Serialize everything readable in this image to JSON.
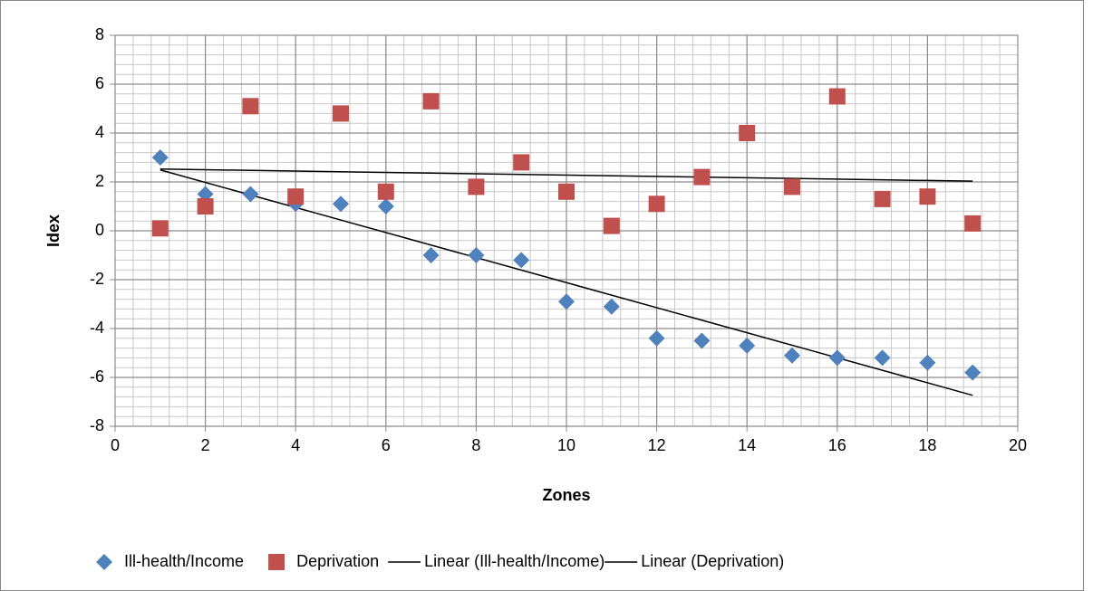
{
  "chart_data": {
    "type": "scatter",
    "x_label": "Zones",
    "y_label": "Idex",
    "x": [
      1,
      2,
      3,
      4,
      5,
      6,
      7,
      8,
      9,
      10,
      11,
      12,
      13,
      14,
      15,
      16,
      17,
      18,
      19
    ],
    "series": [
      {
        "name": "Ill-health/Income",
        "color": "#4f81bd",
        "marker": "diamond",
        "values": [
          3,
          1.5,
          1.5,
          1.1,
          1.1,
          1.0,
          -1.0,
          -1.0,
          -1.2,
          -2.9,
          -3.1,
          -4.4,
          -4.5,
          -4.7,
          -5.1,
          -5.2,
          -5.2,
          -5.4,
          -5.8
        ],
        "trendline": {
          "name": "Linear (Ill-health/Income)",
          "color": "#000000"
        }
      },
      {
        "name": "Deprivation",
        "color": "#c0504d",
        "marker": "square",
        "values": [
          0.1,
          1.0,
          5.1,
          1.4,
          4.8,
          1.6,
          5.3,
          1.8,
          2.8,
          1.6,
          0.2,
          1.1,
          2.2,
          4.0,
          1.8,
          5.5,
          1.3,
          1.4,
          0.3
        ],
        "trendline": {
          "name": "Linear (Deprivation)",
          "color": "#000000"
        }
      }
    ],
    "xlim": [
      0,
      20
    ],
    "xticks": [
      0,
      2,
      4,
      6,
      8,
      10,
      12,
      14,
      16,
      18,
      20
    ],
    "ylim": [
      -8,
      8
    ],
    "yticks": [
      -8,
      -6,
      -4,
      -2,
      0,
      2,
      4,
      6,
      8
    ],
    "grid": true,
    "minor_grid_step": 0.4,
    "legend": "bottom"
  }
}
